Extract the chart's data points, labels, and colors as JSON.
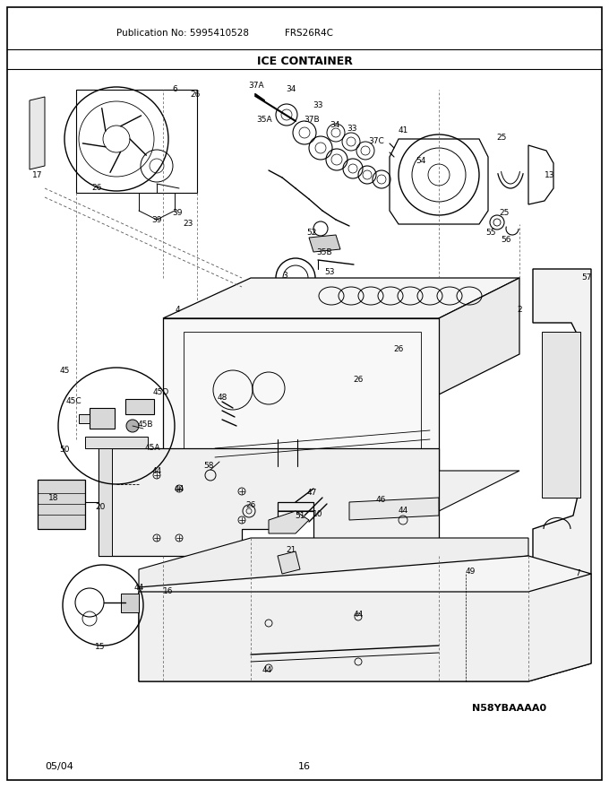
{
  "title": "ICE CONTAINER",
  "pub_no_label": "Publication No: 5995410528",
  "model_label": "FRS26R4C",
  "date_label": "05/04",
  "page_label": "16",
  "part_id_label": "N58YBAAAA0",
  "bg_color": "#ffffff",
  "border_color": "#000000",
  "text_color": "#000000",
  "fig_width": 6.8,
  "fig_height": 8.8,
  "dpi": 100
}
